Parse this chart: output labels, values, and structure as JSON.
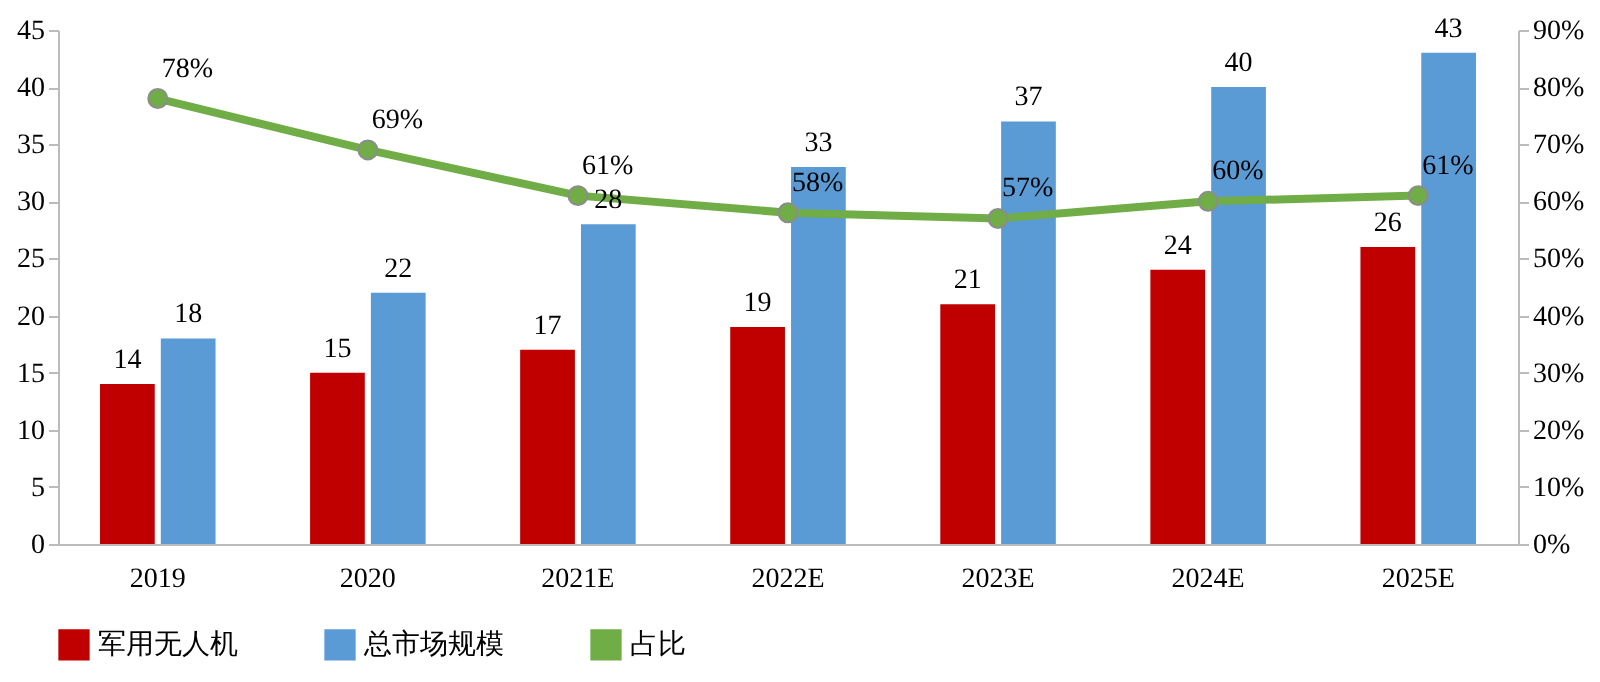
{
  "chart_data": {
    "type": "bar",
    "categories": [
      "2019",
      "2020",
      "2021E",
      "2022E",
      "2023E",
      "2024E",
      "2025E"
    ],
    "series": [
      {
        "name": "军用无人机",
        "color": "#c00000",
        "values": [
          14,
          15,
          17,
          19,
          21,
          24,
          26
        ],
        "value_labels": [
          "14",
          "15",
          "17",
          "19",
          "21",
          "24",
          "26"
        ]
      },
      {
        "name": "总市场规模",
        "color": "#5b9bd5",
        "values": [
          18,
          22,
          28,
          33,
          37,
          40,
          43
        ],
        "value_labels": [
          "18",
          "22",
          "28",
          "33",
          "37",
          "40",
          "43"
        ]
      },
      {
        "name": "占比",
        "type": "line",
        "axis": "y2",
        "color": "#70ad47",
        "values": [
          78,
          69,
          61,
          58,
          57,
          60,
          61
        ],
        "value_labels": [
          "78%",
          "69%",
          "61%",
          "58%",
          "57%",
          "60%",
          "61%"
        ]
      }
    ],
    "ylim": [
      0,
      45
    ],
    "yticks": [
      0,
      5,
      10,
      15,
      20,
      25,
      30,
      35,
      40,
      45
    ],
    "y2lim": [
      0,
      90
    ],
    "y2ticks": [
      {
        "value": 0,
        "label": "0%"
      },
      {
        "value": 10,
        "label": "10%"
      },
      {
        "value": 20,
        "label": "20%"
      },
      {
        "value": 30,
        "label": "30%"
      },
      {
        "value": 40,
        "label": "40%"
      },
      {
        "value": 50,
        "label": "50%"
      },
      {
        "value": 60,
        "label": "60%"
      },
      {
        "value": 70,
        "label": "70%"
      },
      {
        "value": 80,
        "label": "80%"
      },
      {
        "value": 90,
        "label": "90%"
      }
    ],
    "marker": "circle",
    "line_style": "solid",
    "grid": false,
    "legend": "bottom"
  }
}
